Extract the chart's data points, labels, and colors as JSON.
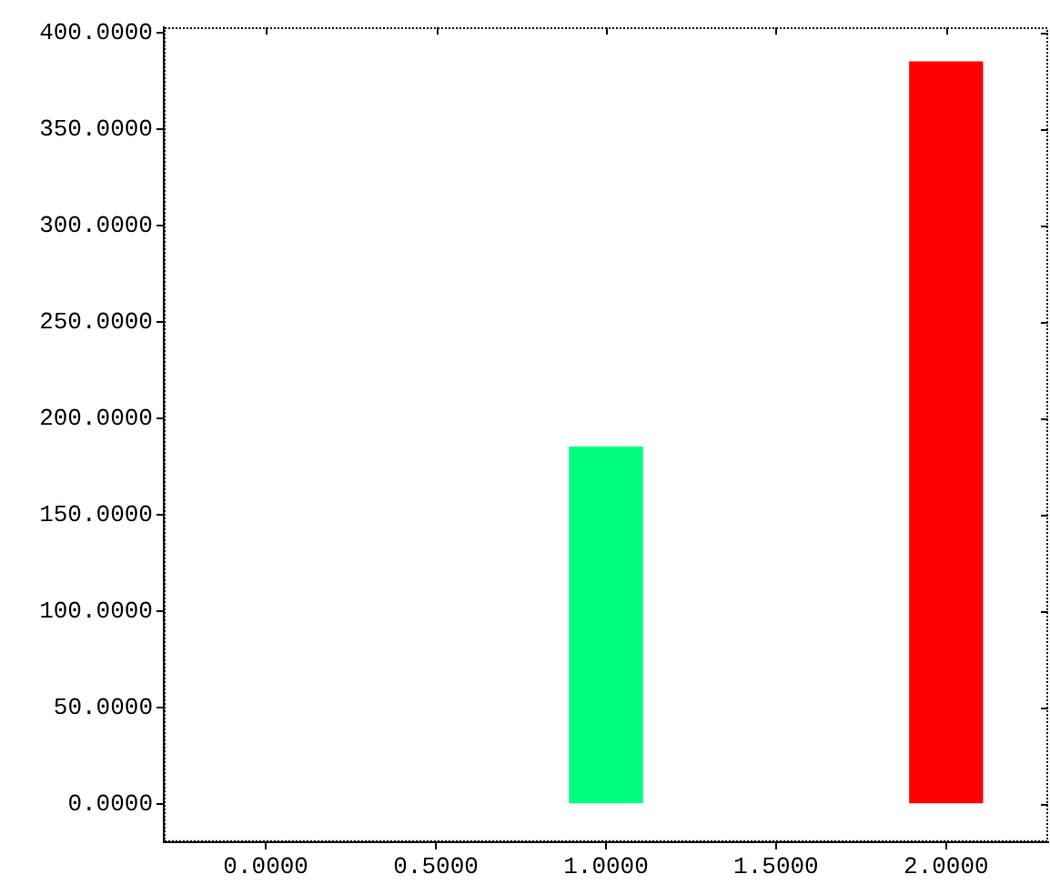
{
  "chart_data": {
    "type": "bar",
    "x": [
      1,
      2
    ],
    "values": [
      185,
      385
    ],
    "colors": [
      "#00ff80",
      "#ff0000"
    ],
    "xlim": [
      -0.3,
      2.3
    ],
    "xticks": [
      {
        "value": 0,
        "label": "0.0000"
      },
      {
        "value": 0.5,
        "label": "0.5000"
      },
      {
        "value": 1,
        "label": "1.0000"
      },
      {
        "value": 1.5,
        "label": "1.5000"
      },
      {
        "value": 2,
        "label": "2.0000"
      }
    ],
    "ylim": [
      -20,
      403
    ],
    "yticks": [
      {
        "value": 0,
        "label": "0.0000"
      },
      {
        "value": 50,
        "label": "50.0000"
      },
      {
        "value": 100,
        "label": "100.0000"
      },
      {
        "value": 150,
        "label": "150.0000"
      },
      {
        "value": 200,
        "label": "200.0000"
      },
      {
        "value": 250,
        "label": "250.0000"
      },
      {
        "value": 300,
        "label": "300.0000"
      },
      {
        "value": 350,
        "label": "350.0000"
      },
      {
        "value": 400,
        "label": "400.0000"
      }
    ],
    "grid": false
  }
}
